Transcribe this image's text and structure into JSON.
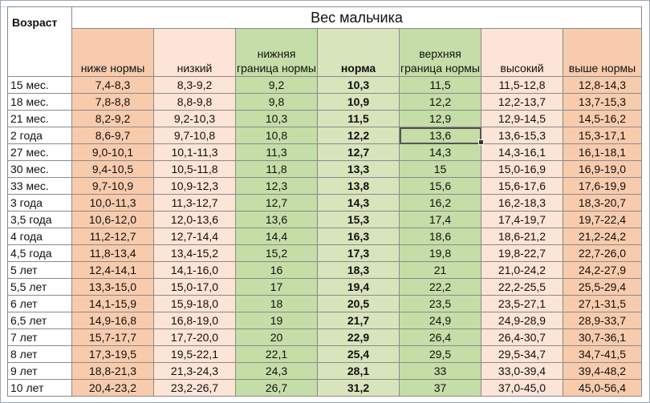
{
  "table": {
    "age_header": "Возраст",
    "title": "Вес мальчика",
    "columns": [
      "ниже нормы",
      "низкий",
      "нижняя граница нормы",
      "норма",
      "верхняя граница нормы",
      "высокий",
      "выше нормы"
    ],
    "rows": [
      {
        "age": "15 мес.",
        "values": [
          "7,4-8,3",
          "8,3-9,2",
          "9,2",
          "10,3",
          "11,5",
          "11,5-12,8",
          "12,8-14,3"
        ]
      },
      {
        "age": "18 мес.",
        "values": [
          "7,8-8,8",
          "8,8-9,8",
          "9,8",
          "10,9",
          "12,2",
          "12,2-13,7",
          "13,7-15,3"
        ]
      },
      {
        "age": "21 мес.",
        "values": [
          "8,2-9,2",
          "9,2-10,3",
          "10,3",
          "11,5",
          "12,9",
          "12,9-14,5",
          "14,5-16,2"
        ]
      },
      {
        "age": "2 года",
        "values": [
          "8,6-9,7",
          "9,7-10,8",
          "10,8",
          "12,2",
          "13,6",
          "13,6-15,3",
          "15,3-17,1"
        ]
      },
      {
        "age": "27 мес.",
        "values": [
          "9,0-10,1",
          "10,1-11,3",
          "11,3",
          "12,7",
          "14,3",
          "14,3-16,1",
          "16,1-18,1"
        ]
      },
      {
        "age": "30 мес.",
        "values": [
          "9,4-10,5",
          "10,5-11,8",
          "11,8",
          "13,3",
          "15",
          "15,0-16,9",
          "16,9-19,0"
        ]
      },
      {
        "age": "33 мес.",
        "values": [
          "9,7-10,9",
          "10,9-12,3",
          "12,3",
          "13,8",
          "15,6",
          "15,6-17,6",
          "17,6-19,9"
        ]
      },
      {
        "age": "3 года",
        "values": [
          "10,0-11,3",
          "11,3-12,7",
          "12,7",
          "14,3",
          "16,2",
          "16,2-18,3",
          "18,3-20,7"
        ]
      },
      {
        "age": "3,5 года",
        "values": [
          "10,6-12,0",
          "12,0-13,6",
          "13,6",
          "15,3",
          "17,4",
          "17,4-19,7",
          "19,7-22,4"
        ]
      },
      {
        "age": "4 года",
        "values": [
          "11,2-12,7",
          "12,7-14,4",
          "14,4",
          "16,3",
          "18,6",
          "18,6-21,2",
          "21,2-24,2"
        ]
      },
      {
        "age": "4,5 года",
        "values": [
          "11,8-13,4",
          "13,4-15,2",
          "15,2",
          "17,3",
          "19,8",
          "19,8-22,7",
          "22,7-26,0"
        ]
      },
      {
        "age": "5 лет",
        "values": [
          "12,4-14,1",
          "14,1-16,0",
          "16",
          "18,3",
          "21",
          "21,0-24,2",
          "24,2-27,9"
        ]
      },
      {
        "age": "5,5 лет",
        "values": [
          "13,3-15,0",
          "15,0-17,0",
          "17",
          "19,4",
          "22,2",
          "22,2-25,5",
          "25,5-29,4"
        ]
      },
      {
        "age": "6 лет",
        "values": [
          "14,1-15,9",
          "15,9-18,0",
          "18",
          "20,5",
          "23,5",
          "23,5-27,1",
          "27,1-31,5"
        ]
      },
      {
        "age": "6,5 лет",
        "values": [
          "14,9-16,8",
          "16,8-19,0",
          "19",
          "21,7",
          "24,9",
          "24,9-28,9",
          "28,9-33,7"
        ]
      },
      {
        "age": "7 лет",
        "values": [
          "15,7-17,7",
          "17,7-20,0",
          "20",
          "22,9",
          "26,4",
          "26,4-30,7",
          "30,7-36,1"
        ]
      },
      {
        "age": "8 лет",
        "values": [
          "17,3-19,5",
          "19,5-22,1",
          "22,1",
          "25,4",
          "29,5",
          "29,5-34,7",
          "34,7-41,5"
        ]
      },
      {
        "age": "9 лет",
        "values": [
          "18,8-21,3",
          "21,3-24,3",
          "24,3",
          "28,1",
          "33",
          "33,0-39,4",
          "39,4-48,2"
        ]
      },
      {
        "age": "10 лет",
        "values": [
          "20,4-23,2",
          "23,2-26,7",
          "26,7",
          "31,2",
          "37",
          "37,0-45,0",
          "45,0-56,4"
        ]
      }
    ]
  },
  "colors": {
    "below": "#f8cbad",
    "low": "#fce4d6",
    "lower_bound": "#c5dda7",
    "norm": "#d8e4bc",
    "upper_bound": "#c5dda7",
    "high": "#fce4d6",
    "above": "#f8cbad"
  }
}
